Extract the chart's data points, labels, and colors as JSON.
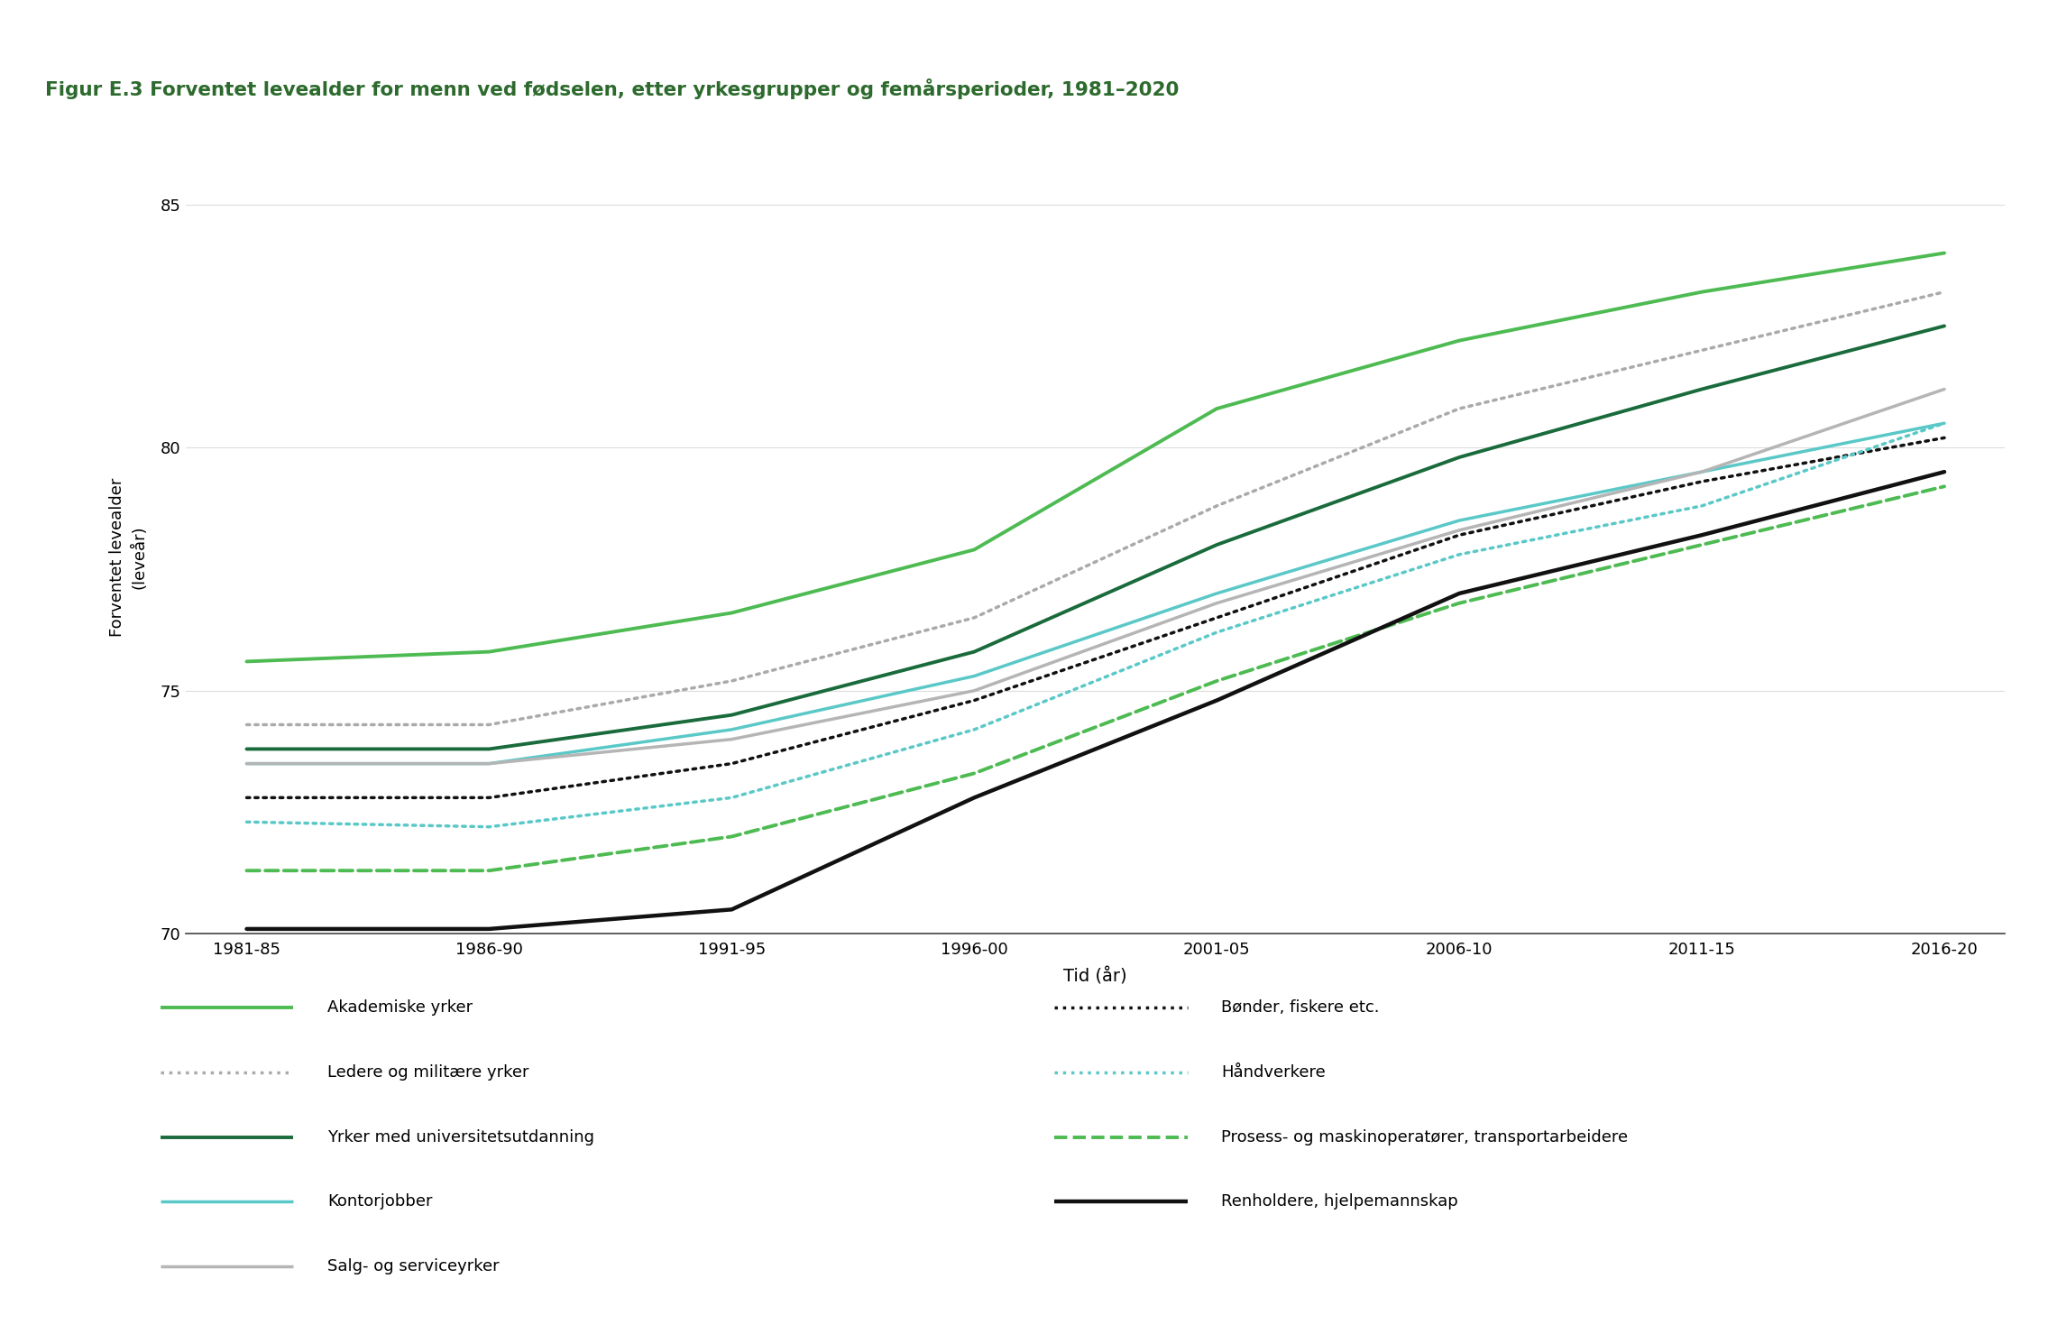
{
  "title": "Figur E.3 Forventet levealder for menn ved fødselen, etter yrkesgrupper og femårsperioder, 1981–2020",
  "title_bg_color": "#d4e8cc",
  "xlabel": "Tid (år)",
  "ylabel": "Forventet levealder\n(leveår)",
  "x_ticks": [
    "1981-85",
    "1986-90",
    "1991-95",
    "1996-00",
    "2001-05",
    "2006-10",
    "2011-15",
    "2016-20"
  ],
  "x_values": [
    0,
    1,
    2,
    3,
    4,
    5,
    6,
    7
  ],
  "ylim": [
    70,
    85.5
  ],
  "yticks": [
    70,
    75,
    80,
    85
  ],
  "series": [
    {
      "name": "Akademiske yrker",
      "values": [
        75.6,
        75.8,
        76.6,
        77.9,
        80.8,
        82.2,
        83.2,
        84.0
      ],
      "color": "#4dbb52",
      "linestyle": "solid",
      "linewidth": 2.8,
      "dash_pattern": null
    },
    {
      "name": "Ledere og militære yrker",
      "values": [
        74.3,
        74.3,
        75.2,
        76.5,
        78.8,
        80.8,
        82.0,
        83.2
      ],
      "color": "#aaaaaa",
      "linestyle": "dotted",
      "linewidth": 2.5,
      "dash_pattern": null
    },
    {
      "name": "Yrker med universitetsutdanning",
      "values": [
        73.8,
        73.8,
        74.5,
        75.8,
        78.0,
        79.8,
        81.2,
        82.5
      ],
      "color": "#1a6b3c",
      "linestyle": "solid",
      "linewidth": 2.8,
      "dash_pattern": null
    },
    {
      "name": "Kontorjobber",
      "values": [
        73.5,
        73.5,
        74.2,
        75.3,
        77.0,
        78.5,
        79.5,
        80.5
      ],
      "color": "#5bc8c8",
      "linestyle": "solid",
      "linewidth": 2.5,
      "dash_pattern": null
    },
    {
      "name": "Salg- og serviceyrker",
      "values": [
        73.5,
        73.5,
        74.0,
        75.0,
        76.8,
        78.3,
        79.5,
        81.2
      ],
      "color": "#b5b5b5",
      "linestyle": "solid",
      "linewidth": 2.5,
      "dash_pattern": null
    },
    {
      "name": "Bønder, fiskere etc.",
      "values": [
        72.8,
        72.8,
        73.5,
        74.8,
        76.5,
        78.2,
        79.3,
        80.2
      ],
      "color": "#111111",
      "linestyle": "dotted",
      "linewidth": 2.5,
      "dash_pattern": null
    },
    {
      "name": "Håndverkere",
      "values": [
        72.3,
        72.2,
        72.8,
        74.2,
        76.2,
        77.8,
        78.8,
        80.5
      ],
      "color": "#5bc8c8",
      "linestyle": "dotted",
      "linewidth": 2.5,
      "dash_pattern": null
    },
    {
      "name": "Prosess- og maskinoperatører, transportarbeidere",
      "values": [
        71.3,
        71.3,
        72.0,
        73.3,
        75.2,
        76.8,
        78.0,
        79.2
      ],
      "color": "#4dbb52",
      "linestyle": "dashed",
      "linewidth": 2.8,
      "dash_pattern": null
    },
    {
      "name": "Renholdere, hjelpemannskap",
      "values": [
        70.1,
        70.1,
        70.5,
        72.8,
        74.8,
        77.0,
        78.2,
        79.5
      ],
      "color": "#111111",
      "linestyle": "solid",
      "linewidth": 3.2,
      "dash_pattern": null
    }
  ],
  "background_color": "#ffffff",
  "plot_bg_color": "#ffffff",
  "grid_color": "#dddddd",
  "title_color": "#2d6a2d",
  "title_fontsize": 15.5,
  "axis_fontsize": 13,
  "tick_fontsize": 13,
  "legend_fontsize": 13
}
